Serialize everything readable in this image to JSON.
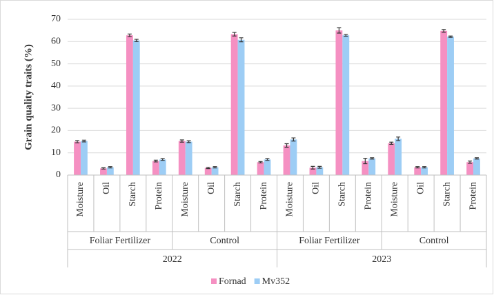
{
  "chart_data": {
    "type": "bar",
    "y_label": "Grain quality traits (%)",
    "categories": [
      "Moisture",
      "Oil",
      "Starch",
      "Protein",
      "Moisture",
      "Oil",
      "Starch",
      "Protein",
      "Moisture",
      "Oil",
      "Starch",
      "Protein",
      "Moisture",
      "Oil",
      "Starch",
      "Protein"
    ],
    "treatments": [
      "Foliar Fertilizer",
      "Control",
      "Foliar Fertilizer",
      "Control"
    ],
    "years": [
      "2022",
      "2023"
    ],
    "series": [
      {
        "name": "Fornad",
        "color": "#f590c2",
        "values": [
          15,
          3,
          62.8,
          6.3,
          15.3,
          3.2,
          63.3,
          5.8,
          13.3,
          3.3,
          65,
          6.3,
          14.3,
          3.5,
          64.8,
          5.8
        ],
        "errors": [
          0.5,
          0.3,
          0.6,
          0.4,
          0.5,
          0.3,
          0.8,
          0.3,
          0.8,
          0.6,
          1.2,
          1.2,
          0.5,
          0.3,
          0.6,
          0.5
        ]
      },
      {
        "name": "Mv352",
        "color": "#9dcdf5",
        "values": [
          15.3,
          3.5,
          60.5,
          7,
          15,
          3.5,
          60.8,
          7,
          16,
          3.5,
          62.8,
          7.5,
          16.3,
          3.5,
          62.2,
          7.5
        ],
        "errors": [
          0.4,
          0.3,
          0.5,
          0.4,
          0.4,
          0.3,
          0.9,
          0.4,
          0.7,
          0.4,
          0.4,
          0.3,
          0.8,
          0.3,
          0.3,
          0.3
        ]
      }
    ],
    "ylim": [
      0,
      70
    ],
    "yticks": [
      0,
      10,
      20,
      30,
      40,
      50,
      60,
      70
    ],
    "grid": true
  }
}
